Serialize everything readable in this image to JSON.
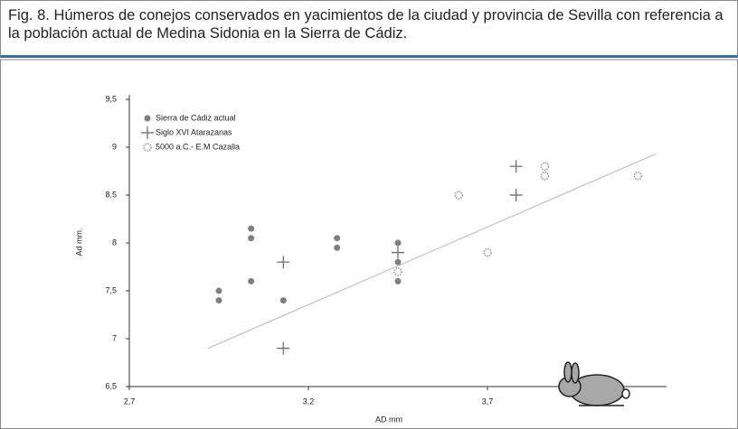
{
  "caption": {
    "label": "Fig. 8.",
    "text": "Húmeros de conejos conservados en yacimientos de la ciudad y provincia de Sevilla con referencia a la población actual de Medina Sidonia en la Sierra de Cádiz."
  },
  "chart_data": {
    "type": "scatter",
    "xlabel": "AD mm",
    "ylabel": "Ad mm.",
    "xlim": [
      2.7,
      4.2
    ],
    "ylim": [
      6.5,
      9.5
    ],
    "xticks": [
      {
        "value": 2.7,
        "label": "2,7"
      },
      {
        "value": 3.2,
        "label": "3,2"
      },
      {
        "value": 3.7,
        "label": "3,7"
      }
    ],
    "yticks": [
      {
        "value": 6.5,
        "label": "6,5"
      },
      7,
      {
        "value": 7.5,
        "label": "7,5"
      },
      8,
      {
        "value": 8.5,
        "label": "8,5"
      },
      9,
      {
        "value": 9.5,
        "label": "9,5"
      }
    ],
    "legend": "upper-left",
    "series": [
      {
        "name": "Sierra de Cádiz actual",
        "marker": "circle",
        "color": "#7f7f7f",
        "x": [
          2.95,
          2.95,
          3.04,
          3.04,
          3.04,
          3.13,
          3.28,
          3.28,
          3.45,
          3.45,
          3.45
        ],
        "values": [
          7.5,
          7.4,
          8.15,
          8.05,
          7.6,
          7.4,
          8.05,
          7.95,
          8.0,
          7.8,
          7.6
        ]
      },
      {
        "name": "Siglo XVI Atarazanas",
        "marker": "plus",
        "color": "#666666",
        "x": [
          3.13,
          3.13,
          3.45,
          3.78,
          3.78
        ],
        "values": [
          7.8,
          6.9,
          7.9,
          8.8,
          8.5
        ]
      },
      {
        "name": "5000 a.C.- E.M Cazalla",
        "marker": "sun",
        "color": "#9a9a9a",
        "x": [
          3.45,
          3.62,
          3.7,
          3.86,
          3.86,
          4.12
        ],
        "values": [
          7.7,
          8.5,
          7.9,
          8.8,
          8.7,
          8.7
        ]
      }
    ],
    "trendline": {
      "color": "#b5b5b5",
      "x": [
        2.92,
        4.17
      ],
      "values": [
        6.9,
        8.93
      ]
    }
  }
}
